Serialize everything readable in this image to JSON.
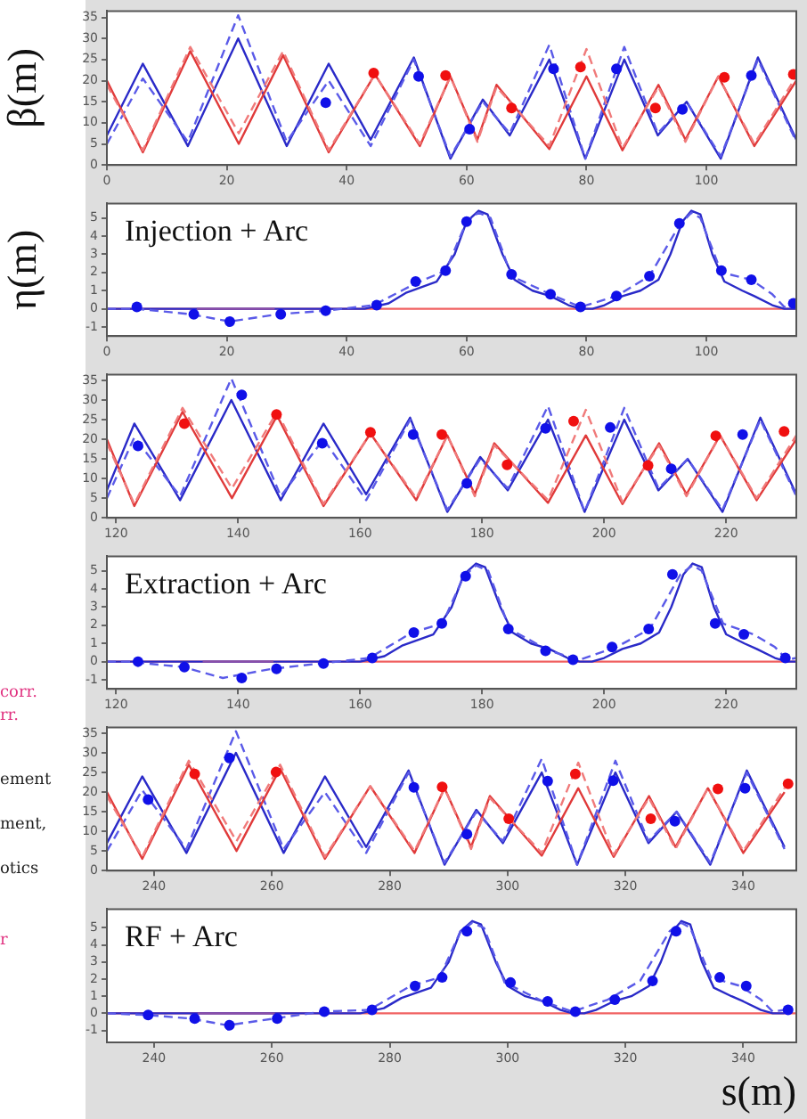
{
  "chart_data": [
    {
      "type": "line",
      "ylabel": "β(m)",
      "xlim": [
        0,
        115
      ],
      "xticks": [
        0,
        20,
        40,
        60,
        80,
        100
      ],
      "ylim": [
        0,
        36.5
      ],
      "yticks": [
        0,
        5,
        10,
        15,
        20,
        25,
        30,
        35
      ],
      "series": [
        {
          "color": "#2a2ac8",
          "line_style": "solid",
          "x": [
            0,
            6,
            13.5,
            21.9,
            30,
            37,
            44,
            51.2,
            57.3,
            62.7,
            67.2,
            73.8,
            79.8,
            86.3,
            91.9,
            96.7,
            102.4,
            108.6,
            115
          ],
          "values": [
            7,
            24,
            4.5,
            30,
            4.5,
            24,
            6,
            25.5,
            1.5,
            15.5,
            7,
            25,
            1.5,
            25,
            7,
            15,
            1.5,
            25.5,
            6
          ]
        },
        {
          "color": "#5a5ae8",
          "line_style": "dashed",
          "x": [
            0,
            6,
            13.5,
            21.9,
            30,
            37,
            44,
            51.2,
            57.3,
            62.7,
            67.2,
            73.8,
            79.8,
            86.3,
            91.9,
            96.7,
            102.4,
            108.6,
            115
          ],
          "values": [
            5,
            20.5,
            5.5,
            35.5,
            5.5,
            20,
            4.5,
            25,
            2,
            15,
            7.5,
            28.5,
            1.5,
            28,
            7.5,
            15,
            2,
            25,
            5.5
          ]
        },
        {
          "color": "#e03a3a",
          "line_style": "solid",
          "x": [
            0,
            6,
            13.9,
            22,
            29.4,
            37,
            44.7,
            52.2,
            57.3,
            61.8,
            65,
            73.8,
            80,
            86,
            92,
            96.5,
            102,
            108,
            115
          ],
          "values": [
            20,
            3,
            27,
            5,
            26,
            3,
            21.5,
            4.5,
            21,
            6,
            19,
            3.8,
            21,
            3.5,
            19,
            6,
            21,
            4.5,
            20
          ]
        },
        {
          "color": "#f07a7a",
          "line_style": "dashed",
          "x": [
            0,
            6,
            13.9,
            22,
            29.4,
            37,
            44.7,
            52.2,
            57.3,
            61.8,
            65,
            73.8,
            80,
            86,
            92,
            96.5,
            102,
            108,
            115
          ],
          "values": [
            19,
            3.5,
            28,
            7.5,
            27,
            3.5,
            21.5,
            5,
            21,
            5.5,
            18.5,
            4.5,
            27.5,
            4,
            18.5,
            5.5,
            21,
            5,
            21
          ]
        },
        {
          "type": "scatter",
          "marker": "circle",
          "color": "#1010e8",
          "x": [
            36.5,
            52,
            60.5,
            74.5,
            85,
            96,
            107.5
          ],
          "values": [
            14.8,
            21,
            8.5,
            22.8,
            22.8,
            13.2,
            21.2
          ]
        },
        {
          "type": "scatter",
          "marker": "circle",
          "color": "#f01010",
          "x": [
            44.5,
            56.5,
            67.5,
            79,
            91.5,
            103,
            114.5
          ],
          "values": [
            21.8,
            21.2,
            13.5,
            23.2,
            13.5,
            20.8,
            21.5
          ]
        }
      ]
    },
    {
      "type": "line",
      "ylabel": "η(m)",
      "annotations": [
        "Injection + Arc"
      ],
      "xlim": [
        0,
        115
      ],
      "xticks": [
        0,
        20,
        40,
        60,
        80,
        100
      ],
      "ylim": [
        -1.5,
        5.8
      ],
      "yticks": [
        -1,
        0,
        1,
        2,
        3,
        4,
        5
      ],
      "series": [
        {
          "color": "#f06060",
          "line_style": "solid",
          "x": [
            0,
            115
          ],
          "values": [
            0,
            0
          ]
        },
        {
          "color": "#2a2ac8",
          "line_style": "solid",
          "x": [
            0,
            40,
            43,
            47,
            50,
            55,
            58,
            60,
            62,
            63.5,
            66,
            68,
            71,
            74,
            77,
            79,
            81,
            83,
            86,
            89,
            92,
            94,
            96,
            97.5,
            99,
            101,
            103,
            106,
            108,
            111,
            113,
            115
          ],
          "values": [
            0,
            0,
            0,
            0.3,
            0.9,
            1.5,
            3,
            4.8,
            5.4,
            5.2,
            3,
            1.6,
            1,
            0.7,
            0.2,
            0,
            0,
            0.2,
            0.7,
            1,
            1.6,
            3,
            4.8,
            5.4,
            5.2,
            3,
            1.5,
            1,
            0.7,
            0.2,
            0,
            0
          ]
        },
        {
          "color": "#5a5ae8",
          "line_style": "dashed",
          "x": [
            0,
            5,
            14,
            20.5,
            28.5,
            36.5,
            44.5,
            51.5,
            56.5,
            60,
            62,
            64,
            67.5,
            74,
            79,
            85,
            90.5,
            95.5,
            97.5,
            99,
            102.5,
            107.5,
            111,
            113,
            115
          ],
          "values": [
            0,
            0,
            -0.3,
            -0.7,
            -0.3,
            -0.1,
            0.2,
            1.4,
            2.1,
            4.8,
            5.3,
            5,
            1.8,
            0.8,
            0.1,
            0.7,
            1.8,
            4.6,
            5.3,
            5,
            2,
            1.6,
            0.8,
            0.1,
            0.3
          ]
        },
        {
          "color": "#8a4fa8",
          "line_style": "solid",
          "x": [
            15,
            28
          ],
          "values": [
            0,
            0
          ]
        },
        {
          "type": "scatter",
          "marker": "circle",
          "color": "#1010e8",
          "x": [
            5,
            14.5,
            20.5,
            29,
            36.5,
            45,
            51.5,
            56.5,
            60,
            67.5,
            74,
            79,
            85,
            90.5,
            95.5,
            102.5,
            107.5,
            114.5
          ],
          "values": [
            0.1,
            -0.3,
            -0.7,
            -0.3,
            -0.1,
            0.2,
            1.5,
            2.1,
            4.8,
            1.9,
            0.8,
            0.1,
            0.7,
            1.8,
            4.7,
            2.1,
            1.6,
            0.3
          ]
        }
      ]
    },
    {
      "type": "line",
      "xlim": [
        118.5,
        231.5
      ],
      "xticks": [
        120,
        140,
        160,
        180,
        200,
        220
      ],
      "ylim": [
        0,
        36.5
      ],
      "yticks": [
        0,
        5,
        10,
        15,
        20,
        25,
        30,
        35
      ],
      "series": [
        {
          "color": "#2a2ac8",
          "line_style": "solid",
          "x": [
            118.5,
            123,
            130.5,
            138.9,
            147,
            154,
            161,
            168.2,
            174.3,
            179.7,
            184.2,
            190.8,
            196.8,
            203.3,
            208.9,
            213.7,
            219.4,
            225.6,
            231.5
          ],
          "values": [
            7,
            24,
            4.5,
            30,
            4.5,
            24,
            6,
            25.5,
            1.5,
            15.5,
            7,
            25,
            1.5,
            25,
            7,
            15,
            1.5,
            25.5,
            6
          ]
        },
        {
          "color": "#5a5ae8",
          "line_style": "dashed",
          "x": [
            118.5,
            123,
            130.5,
            138.9,
            147,
            154,
            161,
            168.2,
            174.3,
            179.7,
            184.2,
            190.8,
            196.8,
            203.3,
            208.9,
            213.7,
            219.4,
            225.6,
            231.5
          ],
          "values": [
            5,
            20.5,
            5.5,
            35.5,
            5.5,
            20,
            4.5,
            25,
            2,
            15,
            7.5,
            28.5,
            1.5,
            28,
            7.5,
            15,
            2,
            25,
            5.5
          ]
        },
        {
          "color": "#e03a3a",
          "line_style": "solid",
          "x": [
            118.5,
            123,
            130.9,
            139,
            146.4,
            154,
            161.7,
            169.2,
            174.3,
            178.8,
            182,
            190.8,
            197,
            203,
            209,
            213.5,
            219,
            225,
            231.5
          ],
          "values": [
            20,
            3,
            27,
            5,
            26,
            3,
            21.5,
            4.5,
            21,
            6,
            19,
            3.8,
            21,
            3.5,
            19,
            6,
            21,
            4.5,
            20
          ]
        },
        {
          "color": "#f07a7a",
          "line_style": "dashed",
          "x": [
            118.5,
            123,
            130.9,
            139,
            146.4,
            154,
            161.7,
            169.2,
            174.3,
            178.8,
            182,
            190.8,
            197,
            203,
            209,
            213.5,
            219,
            225,
            231.5
          ],
          "values": [
            19,
            3.5,
            28,
            7.5,
            27,
            3.5,
            21.5,
            5,
            21,
            5.5,
            18.5,
            4.5,
            27.5,
            4,
            18.5,
            5.5,
            21,
            5,
            21
          ]
        },
        {
          "type": "scatter",
          "marker": "circle",
          "color": "#1010e8",
          "x": [
            123.6,
            140.6,
            153.8,
            168.7,
            177.5,
            190.4,
            201,
            211,
            222.7
          ],
          "values": [
            18.3,
            31.3,
            19,
            21.2,
            8.8,
            22.8,
            23,
            12.5,
            21.2
          ]
        },
        {
          "type": "scatter",
          "marker": "circle",
          "color": "#f01010",
          "x": [
            131.2,
            146.3,
            161.7,
            173.4,
            184.1,
            195,
            207.2,
            218.3,
            229.5
          ],
          "values": [
            24,
            26.3,
            21.8,
            21.2,
            13.5,
            24.6,
            13.3,
            20.9,
            22
          ]
        }
      ]
    },
    {
      "type": "line",
      "annotations": [
        "Extraction + Arc"
      ],
      "xlim": [
        118.5,
        231.5
      ],
      "xticks": [
        120,
        140,
        160,
        180,
        200,
        220
      ],
      "ylim": [
        -1.5,
        5.8
      ],
      "yticks": [
        -1,
        0,
        1,
        2,
        3,
        4,
        5
      ],
      "series": [
        {
          "color": "#f06060",
          "line_style": "solid",
          "x": [
            118.5,
            231.5
          ],
          "values": [
            0,
            0
          ]
        },
        {
          "color": "#2a2ac8",
          "line_style": "solid",
          "x": [
            118.5,
            157,
            160,
            164,
            167,
            172,
            175,
            177,
            179,
            180.5,
            183,
            185,
            188,
            191,
            194,
            196,
            198,
            200,
            203,
            206,
            209,
            211,
            213,
            214.5,
            216,
            218,
            220,
            223,
            225,
            228,
            230,
            231.5
          ],
          "values": [
            0,
            0,
            0,
            0.3,
            0.9,
            1.5,
            3,
            4.8,
            5.4,
            5.2,
            3,
            1.6,
            1,
            0.7,
            0.2,
            0,
            0,
            0.2,
            0.7,
            1,
            1.6,
            3,
            4.8,
            5.4,
            5.2,
            3,
            1.5,
            1,
            0.7,
            0.2,
            0,
            0
          ]
        },
        {
          "color": "#5a5ae8",
          "line_style": "dashed",
          "x": [
            118.5,
            122,
            131,
            137.5,
            145.5,
            153.5,
            161.5,
            168.5,
            173.5,
            177,
            179,
            181,
            184.5,
            191,
            196,
            202,
            207.5,
            212.5,
            214.5,
            216,
            219.5,
            224.5,
            228,
            230,
            231.5
          ],
          "values": [
            0,
            0,
            -0.3,
            -0.9,
            -0.4,
            -0.1,
            0.2,
            1.6,
            2.1,
            4.7,
            5.3,
            5,
            1.8,
            0.6,
            0.1,
            0.8,
            1.8,
            4.8,
            5.3,
            5,
            2.1,
            1.5,
            0.8,
            0.1,
            0.2
          ]
        },
        {
          "color": "#8a4fa8",
          "line_style": "solid",
          "x": [
            134.2,
            145.8
          ],
          "values": [
            0,
            0
          ]
        },
        {
          "type": "scatter",
          "marker": "circle",
          "color": "#1010e8",
          "x": [
            123.6,
            131.2,
            140.6,
            146.3,
            154,
            162,
            168.8,
            173.4,
            177.3,
            184.3,
            190.4,
            194.9,
            201.3,
            207.3,
            211.2,
            218.2,
            222.9,
            229.7
          ],
          "values": [
            0,
            -0.3,
            -0.9,
            -0.4,
            -0.1,
            0.2,
            1.6,
            2.1,
            4.7,
            1.8,
            0.6,
            0.1,
            0.8,
            1.8,
            4.8,
            2.1,
            1.5,
            0.2
          ]
        }
      ]
    },
    {
      "type": "line",
      "xlim": [
        232,
        349
      ],
      "xticks": [
        240,
        260,
        280,
        300,
        320,
        340
      ],
      "ylim": [
        0,
        36.5
      ],
      "yticks": [
        0,
        5,
        10,
        15,
        20,
        25,
        30,
        35
      ],
      "series": [
        {
          "color": "#2a2ac8",
          "line_style": "solid",
          "x": [
            232,
            238,
            245.5,
            253.9,
            262,
            269,
            276,
            283.2,
            289.3,
            294.7,
            299.2,
            305.8,
            311.8,
            318.3,
            323.9,
            328.7,
            334.4,
            340.6,
            347
          ],
          "values": [
            7,
            24,
            4.5,
            30,
            4.5,
            24,
            6,
            25.5,
            1.5,
            15.5,
            7,
            25,
            1.5,
            25,
            7,
            15,
            1.5,
            25.5,
            6
          ]
        },
        {
          "color": "#5a5ae8",
          "line_style": "dashed",
          "x": [
            232,
            238,
            245.5,
            253.9,
            262,
            269,
            276,
            283.2,
            289.3,
            294.7,
            299.2,
            305.8,
            311.8,
            318.3,
            323.9,
            328.7,
            334.4,
            340.6,
            347
          ],
          "values": [
            5,
            20.5,
            5.5,
            35.5,
            5.5,
            20,
            4.5,
            25,
            2,
            15,
            7.5,
            28.5,
            1.5,
            28,
            7.5,
            15,
            2,
            25,
            5.5
          ]
        },
        {
          "color": "#e03a3a",
          "line_style": "solid",
          "x": [
            232,
            238,
            245.9,
            254,
            261.4,
            269,
            276.7,
            284.2,
            289.3,
            293.8,
            297,
            305.8,
            312,
            318,
            324,
            328.5,
            334,
            340,
            347
          ],
          "values": [
            20,
            3,
            27,
            5,
            26,
            3,
            21.5,
            4.5,
            21,
            6,
            19,
            3.8,
            21,
            3.5,
            19,
            6,
            21,
            4.5,
            20
          ]
        },
        {
          "color": "#f07a7a",
          "line_style": "dashed",
          "x": [
            232,
            238,
            245.9,
            254,
            261.4,
            269,
            276.7,
            284.2,
            289.3,
            293.8,
            297,
            305.8,
            312,
            318,
            324,
            328.5,
            334,
            340,
            347
          ],
          "values": [
            19,
            3.5,
            28,
            7.5,
            27,
            3.5,
            21.5,
            5,
            21,
            5.5,
            18.5,
            4.5,
            27.5,
            4,
            18.5,
            5.5,
            21,
            5,
            21
          ]
        },
        {
          "type": "scatter",
          "marker": "circle",
          "color": "#1010e8",
          "x": [
            239,
            252.8,
            284.1,
            293.1,
            306.8,
            317.9,
            328.4,
            340.3
          ],
          "values": [
            18.1,
            28.7,
            21.2,
            9.3,
            22.8,
            22.9,
            12.6,
            21
          ]
        },
        {
          "type": "scatter",
          "marker": "circle",
          "color": "#f01010",
          "x": [
            246.9,
            260.7,
            288.9,
            300.2,
            311.5,
            324.3,
            335.7,
            347.6
          ],
          "values": [
            24.6,
            25.1,
            21.3,
            13.2,
            24.6,
            13.2,
            20.8,
            22.1
          ]
        }
      ]
    },
    {
      "type": "line",
      "xlabel": "s(m)",
      "annotations": [
        "RF + Arc"
      ],
      "xlim": [
        232,
        349
      ],
      "xticks": [
        240,
        260,
        280,
        300,
        320,
        340
      ],
      "ylim": [
        -1.7,
        6.1
      ],
      "yticks": [
        -1,
        0,
        1,
        2,
        3,
        4,
        5
      ],
      "series": [
        {
          "color": "#f06060",
          "line_style": "solid",
          "x": [
            232,
            349
          ],
          "values": [
            0,
            0
          ]
        },
        {
          "color": "#2a2ac8",
          "line_style": "solid",
          "x": [
            232,
            272,
            275,
            279,
            282,
            287,
            290,
            292,
            294,
            295.5,
            298,
            300,
            303,
            306,
            309,
            311,
            313,
            315,
            318,
            321,
            324,
            326,
            328,
            329.5,
            331,
            333,
            335,
            338,
            340,
            343,
            345,
            347
          ],
          "values": [
            0,
            0,
            0,
            0.3,
            0.9,
            1.5,
            3,
            4.8,
            5.4,
            5.2,
            3,
            1.6,
            1,
            0.7,
            0.2,
            0,
            0,
            0.2,
            0.7,
            1,
            1.6,
            3,
            4.8,
            5.4,
            5.2,
            3,
            1.5,
            1,
            0.7,
            0.2,
            0,
            0
          ]
        },
        {
          "color": "#5a5ae8",
          "line_style": "dashed",
          "x": [
            232,
            239,
            246,
            252.5,
            260.5,
            268.5,
            276.5,
            283.5,
            288.5,
            292,
            294,
            296,
            299.5,
            306,
            311,
            317,
            322.5,
            327.5,
            329.5,
            331,
            334.5,
            339.5,
            343,
            345,
            347
          ],
          "values": [
            0,
            -0.1,
            -0.3,
            -0.7,
            -0.3,
            0.1,
            0.2,
            1.6,
            2.1,
            4.8,
            5.3,
            5,
            1.8,
            0.7,
            0.1,
            0.8,
            1.9,
            4.8,
            5.3,
            5,
            2.1,
            1.6,
            0.8,
            0.1,
            0.2
          ]
        },
        {
          "color": "#8a4fa8",
          "line_style": "solid",
          "x": [
            247.4,
            260.5
          ],
          "values": [
            0,
            0
          ]
        },
        {
          "type": "scatter",
          "marker": "circle",
          "color": "#1010e8",
          "x": [
            239,
            246.9,
            252.8,
            260.9,
            268.9,
            277,
            284.3,
            288.9,
            293.1,
            300.5,
            306.8,
            311.5,
            318.2,
            324.6,
            328.6,
            336,
            340.5,
            347.6
          ],
          "values": [
            -0.1,
            -0.3,
            -0.7,
            -0.3,
            0.1,
            0.2,
            1.6,
            2.1,
            4.8,
            1.8,
            0.7,
            0.1,
            0.8,
            1.9,
            4.8,
            2.1,
            1.6,
            0.2
          ]
        }
      ]
    },
    {
      "type": "other",
      "annotations": [
        "corr.",
        "rr.",
        "ement",
        "ment,",
        "otics",
        "r"
      ],
      "colors": [
        "#e0307f",
        "#e0307f",
        "#222222",
        "#222222",
        "#222222",
        "#e0307f"
      ]
    }
  ]
}
